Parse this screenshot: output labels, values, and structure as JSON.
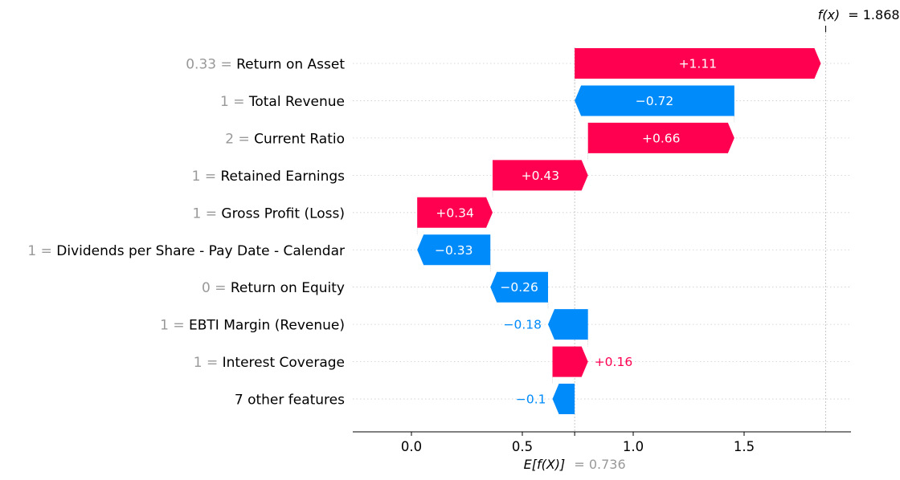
{
  "chart_data": {
    "type": "waterfall",
    "base_value": 0.736,
    "base_label": "E[f(X)]",
    "base_value_text": "= 0.736",
    "final_value": 1.868,
    "final_label": "f(x)",
    "final_value_text": "= 1.868",
    "xlim": [
      -0.27,
      1.98
    ],
    "xticks": [
      0.0,
      0.5,
      1.0,
      1.5
    ],
    "xtick_labels": [
      "0.0",
      "0.5",
      "1.0",
      "1.5"
    ],
    "colors": {
      "positive": "#ff0051",
      "negative": "#008bfb",
      "value_text": "#999999",
      "grid": "#cccccc"
    },
    "features": [
      {
        "value": "0.33 =",
        "name": "Return on Asset",
        "contribution": 1.11,
        "label": "+1.11"
      },
      {
        "value": "1 =",
        "name": "Total Revenue",
        "contribution": -0.72,
        "label": "−0.72"
      },
      {
        "value": "2 =",
        "name": "Current Ratio",
        "contribution": 0.66,
        "label": "+0.66"
      },
      {
        "value": "1 =",
        "name": "Retained Earnings",
        "contribution": 0.43,
        "label": "+0.43"
      },
      {
        "value": "1 =",
        "name": "Gross Profit (Loss)",
        "contribution": 0.34,
        "label": "+0.34"
      },
      {
        "value": "1 =",
        "name": "Dividends per Share - Pay Date - Calendar",
        "contribution": -0.33,
        "label": "−0.33"
      },
      {
        "value": "0 =",
        "name": "Return on Equity",
        "contribution": -0.26,
        "label": "−0.26"
      },
      {
        "value": "1 =",
        "name": "EBTI Margin (Revenue)",
        "contribution": -0.18,
        "label": "−0.18"
      },
      {
        "value": "1 =",
        "name": "Interest Coverage",
        "contribution": 0.16,
        "label": "+0.16"
      },
      {
        "value": "",
        "name": "7 other features",
        "contribution": -0.1,
        "label": "−0.1"
      }
    ]
  }
}
